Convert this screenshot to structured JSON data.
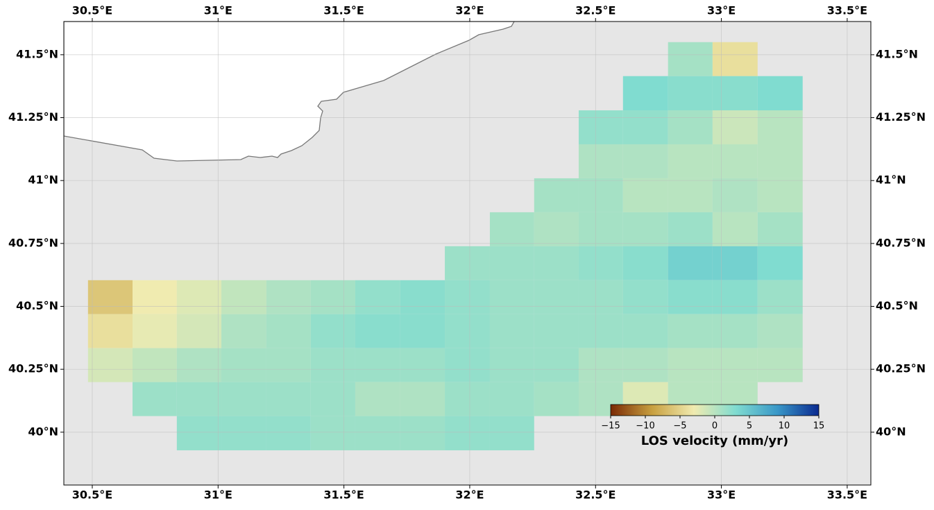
{
  "chart_data": {
    "type": "map",
    "xlim": [
      30.387,
      33.594
    ],
    "ylim": [
      39.79,
      41.632
    ],
    "xticks": [
      {
        "value": 30.5,
        "label": "30.5°E"
      },
      {
        "value": 31,
        "label": "31°E"
      },
      {
        "value": 31.5,
        "label": "31.5°E"
      },
      {
        "value": 32,
        "label": "32°E"
      },
      {
        "value": 32.5,
        "label": "32.5°E"
      },
      {
        "value": 33,
        "label": "33°E"
      },
      {
        "value": 33.5,
        "label": "33.5°E"
      }
    ],
    "yticks": [
      {
        "value": 40,
        "label": "40°N"
      },
      {
        "value": 40.25,
        "label": "40.25°N"
      },
      {
        "value": 40.5,
        "label": "40.5°N"
      },
      {
        "value": 40.75,
        "label": "40.75°N"
      },
      {
        "value": 41,
        "label": "41°N"
      },
      {
        "value": 41.25,
        "label": "41.25°N"
      },
      {
        "value": 41.5,
        "label": "41.5°N"
      }
    ],
    "grid": true,
    "grid_lon_edges": [
      30.483,
      30.66,
      30.836,
      31.013,
      31.192,
      31.368,
      31.545,
      31.724,
      31.901,
      32.08,
      32.256,
      32.433,
      32.609,
      32.788,
      32.965,
      33.144,
      33.323
    ],
    "grid_lat_edges": [
      41.55,
      41.415,
      41.279,
      41.144,
      41.009,
      40.874,
      40.739,
      40.604,
      40.469,
      40.334,
      40.199,
      40.064,
      39.928
    ],
    "values": [
      [
        null,
        null,
        null,
        null,
        null,
        null,
        null,
        null,
        null,
        null,
        null,
        null,
        null,
        1,
        -4,
        null
      ],
      [
        null,
        null,
        null,
        null,
        null,
        null,
        null,
        null,
        null,
        null,
        null,
        null,
        3,
        2.5,
        2.5,
        3
      ],
      [
        null,
        null,
        null,
        null,
        null,
        null,
        null,
        null,
        null,
        null,
        null,
        2,
        2,
        1,
        -1,
        0
      ],
      [
        null,
        null,
        null,
        null,
        null,
        null,
        null,
        null,
        null,
        null,
        null,
        0.5,
        0.5,
        0,
        0,
        0
      ],
      [
        null,
        null,
        null,
        null,
        null,
        null,
        null,
        null,
        null,
        null,
        1,
        1,
        0,
        0,
        0.5,
        0
      ],
      [
        null,
        null,
        null,
        null,
        null,
        null,
        null,
        null,
        null,
        1,
        0.5,
        1,
        1,
        1.5,
        0,
        1
      ],
      [
        null,
        null,
        null,
        null,
        null,
        null,
        null,
        null,
        1.5,
        1.5,
        1.5,
        2,
        2.5,
        4,
        4,
        3
      ],
      [
        -6,
        -3,
        -2,
        -0.5,
        0.5,
        1,
        2,
        2.5,
        2,
        1.5,
        1.5,
        1.5,
        2,
        2.5,
        2.5,
        1.5
      ],
      [
        -4,
        -2.5,
        -1.5,
        0.5,
        1,
        2,
        2.5,
        2.5,
        2,
        1.5,
        1.5,
        1.5,
        1.5,
        1,
        1,
        0.5
      ],
      [
        -1.5,
        -0.5,
        0.5,
        1,
        1,
        1.5,
        1.5,
        1.5,
        2,
        1.5,
        1.5,
        0.5,
        0.5,
        0,
        0,
        0
      ],
      [
        null,
        1.5,
        1.5,
        1.5,
        1.5,
        1.5,
        0.5,
        0.5,
        1.5,
        1.5,
        1,
        0.5,
        -2,
        0,
        0,
        null
      ],
      [
        null,
        null,
        2,
        2,
        2,
        1.5,
        1.5,
        1.5,
        2,
        2,
        null,
        null,
        null,
        null,
        null,
        null
      ]
    ],
    "colormap": [
      "#7a2a05",
      "#c8a040",
      "#f0ebb0",
      "#80dcd0",
      "#3a98c8",
      "#0a2a90"
    ],
    "clim": [
      -15,
      15
    ],
    "cticks": [
      {
        "value": -15,
        "label": "−15"
      },
      {
        "value": -10,
        "label": "−10"
      },
      {
        "value": -5,
        "label": "−5"
      },
      0,
      5,
      10,
      15
    ],
    "colorbar_label": "LOS velocity (mm/yr)"
  }
}
